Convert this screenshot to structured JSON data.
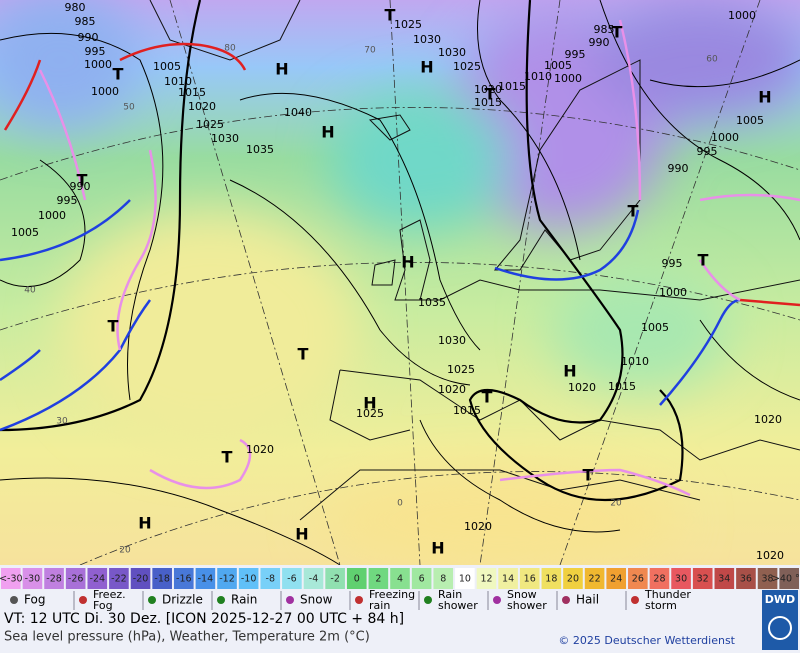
{
  "map": {
    "isobar_labels": [
      "980",
      "985",
      "990",
      "995",
      "1000",
      "1005",
      "1010",
      "1015",
      "1020",
      "1025",
      "1030",
      "1035",
      "1040",
      "1025",
      "1030",
      "1030",
      "1025",
      "1020",
      "1015",
      "1015",
      "1010",
      "1005",
      "1000",
      "995",
      "990",
      "985",
      "1000",
      "1005",
      "1000",
      "995",
      "990",
      "995",
      "1000",
      "1005",
      "1010",
      "1015",
      "1020",
      "1025",
      "1030",
      "1035",
      "1020",
      "1015",
      "1025",
      "1020",
      "1020",
      "1020",
      "1020",
      "990",
      "995",
      "1000",
      "1005",
      "1000"
    ],
    "high_labels": [
      "H",
      "H",
      "H",
      "H",
      "H",
      "H",
      "H",
      "H",
      "H",
      "H"
    ],
    "low_labels": [
      "T",
      "T",
      "T",
      "T",
      "T",
      "T",
      "T",
      "T",
      "T",
      "T",
      "T",
      "T"
    ],
    "temperature_labels": [
      "60",
      "50",
      "40",
      "30",
      "20",
      "20",
      "0",
      "80",
      "70"
    ]
  },
  "legend": {
    "temperature_scale": {
      "labels": [
        "<-30",
        "-30",
        "-28",
        "-26",
        "-24",
        "-22",
        "-20",
        "-18",
        "-16",
        "-14",
        "-12",
        "-10",
        "-8",
        "-6",
        "-4",
        "-2",
        "0",
        "2",
        "4",
        "6",
        "8",
        "10",
        "12",
        "14",
        "16",
        "18",
        "20",
        "22",
        "24",
        "26",
        "28",
        "30",
        "32",
        "34",
        "36",
        "38",
        ">40 °C"
      ],
      "colors": [
        "#f0a0f0",
        "#d890e8",
        "#c080e0",
        "#a870d8",
        "#9060d0",
        "#7858c8",
        "#6050c0",
        "#4860c8",
        "#4878d8",
        "#4890e8",
        "#50a8f0",
        "#60c0f8",
        "#78d0f8",
        "#90e0f0",
        "#a8e8d8",
        "#90e0b0",
        "#60d070",
        "#70d880",
        "#88e090",
        "#a0e8a0",
        "#b8eeb0",
        "#ffffff",
        "#f0f8c0",
        "#f0f0a0",
        "#f0e880",
        "#f0e060",
        "#f0d040",
        "#f0b830",
        "#f0a030",
        "#f08850",
        "#f07060",
        "#e85860",
        "#d85050",
        "#c04848",
        "#a85048",
        "#906050",
        "#806058"
      ]
    },
    "weather": [
      {
        "lines": [
          "Fog"
        ]
      },
      {
        "lines": [
          "Freez.",
          "Fog"
        ]
      },
      {
        "lines": [
          "Drizzle"
        ]
      },
      {
        "lines": [
          "Rain"
        ]
      },
      {
        "lines": [
          "Snow"
        ]
      },
      {
        "lines": [
          "Freezing",
          "rain"
        ]
      },
      {
        "lines": [
          "Rain",
          "shower"
        ]
      },
      {
        "lines": [
          "Snow",
          "shower"
        ]
      },
      {
        "lines": [
          "Hail"
        ]
      },
      {
        "lines": [
          "Thunder",
          "storm"
        ]
      }
    ]
  },
  "footer": {
    "valid_time": "VT: 12 UTC Di.  30 Dez. [ICON 2025-12-27  00 UTC + 84 h]",
    "description": "Sea level pressure (hPa), Weather, Temperature 2m (°C)",
    "copyright": "© 2025 Deutscher Wetterdienst",
    "logo": "DWD"
  }
}
